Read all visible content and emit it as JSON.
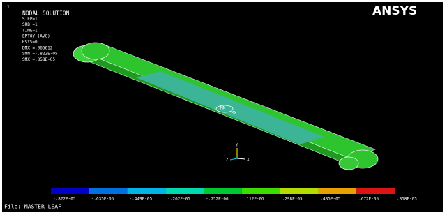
{
  "window_number": "1",
  "info": [
    "NODAL SOLUTION",
    "STEP=1",
    "SUB =1",
    "TIME=1",
    "EPTOY     (AVG)",
    "RSYS=0",
    "DMX =.065612",
    "SMN =-.822E-05",
    "SMX =.858E-05"
  ],
  "logo": "ANSYS",
  "markers": {
    "min": "MN",
    "max": "MX"
  },
  "triad": {
    "y": "Y",
    "z": "Z",
    "x": "X"
  },
  "legend": {
    "colors": [
      "#0000c8",
      "#0070e0",
      "#00b4e6",
      "#00d8b0",
      "#00c832",
      "#3cdc00",
      "#b4dc00",
      "#e6a000",
      "#dc1414"
    ],
    "labels": [
      "-.822E-05",
      "-.635E-05",
      "-.449E-05",
      "-.262E-05",
      "-.752E-06",
      ".112E-05",
      ".298E-05",
      ".485E-05",
      ".672E-05",
      ".858E-05"
    ]
  },
  "file": "File: MASTER LEAF"
}
